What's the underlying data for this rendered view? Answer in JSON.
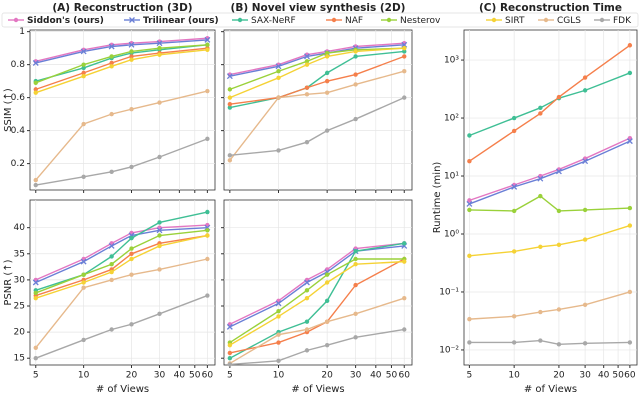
{
  "chart_data": [
    {
      "type": "line",
      "title": "(A) Reconstruction (3D)",
      "ylabel": "SSIM (↑)",
      "xscale": "log",
      "x": [
        5,
        10,
        15,
        20,
        30,
        60
      ],
      "xlim": [
        4.6,
        67
      ],
      "xticks": [
        5,
        10,
        20,
        30,
        40,
        50,
        60
      ],
      "ylim": [
        0.04,
        1.01
      ],
      "yticks": [
        0.2,
        0.4,
        0.6,
        0.8,
        1.0
      ],
      "grid": true,
      "series": [
        {
          "name": "Siddon's (ours)",
          "color": "#e377c2",
          "marker": "o",
          "values": [
            0.82,
            0.89,
            0.92,
            0.93,
            0.94,
            0.96
          ]
        },
        {
          "name": "Trilinear (ours)",
          "color": "#6a7fd6",
          "marker": "x",
          "values": [
            0.81,
            0.88,
            0.91,
            0.92,
            0.93,
            0.95
          ]
        },
        {
          "name": "SAX-NeRF",
          "color": "#3fbf95",
          "marker": "o",
          "values": [
            0.7,
            0.78,
            0.84,
            0.87,
            0.89,
            0.92
          ]
        },
        {
          "name": "NAF",
          "color": "#f57f4b",
          "marker": "o",
          "values": [
            0.65,
            0.75,
            0.81,
            0.85,
            0.87,
            0.9
          ]
        },
        {
          "name": "Nesterov",
          "color": "#9ad13a",
          "marker": "o",
          "values": [
            0.69,
            0.8,
            0.85,
            0.88,
            0.9,
            0.92
          ]
        },
        {
          "name": "SIRT",
          "color": "#f5d235",
          "marker": "o",
          "values": [
            0.63,
            0.73,
            0.79,
            0.83,
            0.86,
            0.89
          ]
        },
        {
          "name": "CGLS",
          "color": "#e6b98c",
          "marker": "o",
          "values": [
            0.1,
            0.44,
            0.5,
            0.53,
            0.57,
            0.64
          ]
        },
        {
          "name": "FDK",
          "color": "#a8a8a8",
          "marker": "o",
          "values": [
            0.07,
            0.12,
            0.15,
            0.18,
            0.24,
            0.35
          ]
        }
      ]
    },
    {
      "type": "line",
      "ylabel": "PSNR (↑)",
      "xlabel": "# of Views",
      "xscale": "log",
      "x": [
        5,
        10,
        15,
        20,
        30,
        60
      ],
      "xlim": [
        4.6,
        67
      ],
      "xticks": [
        5,
        10,
        20,
        30,
        40,
        50,
        60
      ],
      "ylim": [
        13.7,
        45.3
      ],
      "yticks": [
        15,
        20,
        25,
        30,
        35,
        40
      ],
      "grid": true,
      "series": [
        {
          "name": "Siddon's (ours)",
          "color": "#e377c2",
          "marker": "o",
          "values": [
            30,
            34,
            37,
            39,
            40,
            40.5
          ]
        },
        {
          "name": "Trilinear (ours)",
          "color": "#6a7fd6",
          "marker": "x",
          "values": [
            29.5,
            33.5,
            36.5,
            38.5,
            39.5,
            40
          ]
        },
        {
          "name": "SAX-NeRF",
          "color": "#3fbf95",
          "marker": "o",
          "values": [
            28,
            31,
            34.5,
            38,
            41,
            43
          ]
        },
        {
          "name": "NAF",
          "color": "#f57f4b",
          "marker": "o",
          "values": [
            27,
            30,
            32,
            35,
            37,
            38.5
          ]
        },
        {
          "name": "Nesterov",
          "color": "#9ad13a",
          "marker": "o",
          "values": [
            27.5,
            31,
            33,
            36,
            38.5,
            39.5
          ]
        },
        {
          "name": "SIRT",
          "color": "#f5d235",
          "marker": "o",
          "values": [
            26.5,
            29.5,
            31.5,
            34,
            36.5,
            38.5
          ]
        },
        {
          "name": "CGLS",
          "color": "#e6b98c",
          "marker": "o",
          "values": [
            17,
            28.5,
            30,
            31,
            32,
            34
          ]
        },
        {
          "name": "FDK",
          "color": "#a8a8a8",
          "marker": "o",
          "values": [
            15,
            18.5,
            20.5,
            21.5,
            23.5,
            27
          ]
        }
      ]
    },
    {
      "type": "line",
      "title": "(B) Novel view synthesis (2D)",
      "xscale": "log",
      "x": [
        5,
        10,
        15,
        20,
        30,
        60
      ],
      "xlim": [
        4.6,
        67
      ],
      "xticks": [
        5,
        10,
        20,
        30,
        40,
        50,
        60
      ],
      "ylim": [
        0.04,
        1.01
      ],
      "yticks": [
        0.2,
        0.4,
        0.6,
        0.8,
        1.0
      ],
      "grid": true,
      "series": [
        {
          "name": "Siddon's (ours)",
          "color": "#e377c2",
          "marker": "o",
          "values": [
            0.74,
            0.8,
            0.86,
            0.88,
            0.91,
            0.93
          ]
        },
        {
          "name": "Trilinear (ours)",
          "color": "#6a7fd6",
          "marker": "x",
          "values": [
            0.73,
            0.79,
            0.85,
            0.87,
            0.9,
            0.92
          ]
        },
        {
          "name": "SAX-NeRF",
          "color": "#3fbf95",
          "marker": "o",
          "values": [
            0.54,
            0.6,
            0.66,
            0.75,
            0.85,
            0.88
          ]
        },
        {
          "name": "NAF",
          "color": "#f57f4b",
          "marker": "o",
          "values": [
            0.56,
            0.6,
            0.66,
            0.7,
            0.74,
            0.85
          ]
        },
        {
          "name": "Nesterov",
          "color": "#9ad13a",
          "marker": "o",
          "values": [
            0.65,
            0.76,
            0.82,
            0.87,
            0.89,
            0.9
          ]
        },
        {
          "name": "SIRT",
          "color": "#f5d235",
          "marker": "o",
          "values": [
            0.6,
            0.72,
            0.8,
            0.85,
            0.88,
            0.9
          ]
        },
        {
          "name": "CGLS",
          "color": "#e6b98c",
          "marker": "o",
          "values": [
            0.22,
            0.6,
            0.62,
            0.63,
            0.68,
            0.76
          ]
        },
        {
          "name": "FDK",
          "color": "#a8a8a8",
          "marker": "o",
          "values": [
            0.25,
            0.28,
            0.33,
            0.4,
            0.47,
            0.6
          ]
        }
      ]
    },
    {
      "type": "line",
      "xlabel": "# of Views",
      "xscale": "log",
      "x": [
        5,
        10,
        15,
        20,
        30,
        60
      ],
      "xlim": [
        4.6,
        67
      ],
      "xticks": [
        5,
        10,
        20,
        30,
        40,
        50,
        60
      ],
      "ylim": [
        13.7,
        45.3
      ],
      "yticks": [
        15,
        20,
        25,
        30,
        35,
        40
      ],
      "grid": true,
      "series": [
        {
          "name": "Siddon's (ours)",
          "color": "#e377c2",
          "marker": "o",
          "values": [
            21.5,
            26,
            30,
            32,
            36,
            37
          ]
        },
        {
          "name": "Trilinear (ours)",
          "color": "#6a7fd6",
          "marker": "x",
          "values": [
            21,
            25.5,
            29.5,
            31.5,
            35.5,
            36.5
          ]
        },
        {
          "name": "SAX-NeRF",
          "color": "#3fbf95",
          "marker": "o",
          "values": [
            15,
            20,
            22,
            26,
            35.5,
            37
          ]
        },
        {
          "name": "NAF",
          "color": "#f57f4b",
          "marker": "o",
          "values": [
            16,
            18,
            20,
            22,
            29,
            34
          ]
        },
        {
          "name": "Nesterov",
          "color": "#9ad13a",
          "marker": "o",
          "values": [
            18,
            24,
            28,
            31,
            34,
            34
          ]
        },
        {
          "name": "SIRT",
          "color": "#f5d235",
          "marker": "o",
          "values": [
            17.5,
            23,
            26.5,
            29.5,
            33,
            33.5
          ]
        },
        {
          "name": "CGLS",
          "color": "#e6b98c",
          "marker": "o",
          "values": [
            14,
            19.5,
            20.5,
            22,
            23.5,
            26.5
          ]
        },
        {
          "name": "FDK",
          "color": "#a8a8a8",
          "marker": "o",
          "values": [
            13.8,
            14.5,
            16.5,
            17.5,
            19,
            20.5
          ]
        }
      ]
    },
    {
      "type": "line",
      "title": "(C) Reconstruction Time",
      "ylabel": "Runtime (min)",
      "xlabel": "# of Views",
      "xscale": "log",
      "yscale": "log",
      "x": [
        5,
        10,
        15,
        20,
        30,
        60
      ],
      "xlim": [
        4.6,
        67
      ],
      "xticks": [
        5,
        10,
        20,
        30,
        40,
        50,
        60
      ],
      "ylim": [
        0.0055,
        3300
      ],
      "yticks": [
        {
          "value": 0.01,
          "label": "10⁻²"
        },
        {
          "value": 0.1,
          "label": "10⁻¹"
        },
        {
          "value": 1,
          "label": "10⁰"
        },
        {
          "value": 10,
          "label": "10¹"
        },
        {
          "value": 100,
          "label": "10²"
        },
        {
          "value": 1000,
          "label": "10³"
        }
      ],
      "grid": true,
      "series": [
        {
          "name": "Siddon's (ours)",
          "color": "#e377c2",
          "marker": "o",
          "values": [
            3.8,
            7,
            10,
            13,
            20,
            45
          ]
        },
        {
          "name": "Trilinear (ours)",
          "color": "#6a7fd6",
          "marker": "x",
          "values": [
            3.3,
            6.5,
            9,
            12,
            18,
            40
          ]
        },
        {
          "name": "SAX-NeRF",
          "color": "#3fbf95",
          "marker": "o",
          "values": [
            50,
            100,
            150,
            220,
            300,
            600
          ]
        },
        {
          "name": "NAF",
          "color": "#f57f4b",
          "marker": "o",
          "values": [
            18,
            60,
            120,
            230,
            500,
            1800
          ]
        },
        {
          "name": "Nesterov",
          "color": "#9ad13a",
          "marker": "o",
          "values": [
            2.6,
            2.5,
            4.5,
            2.5,
            2.6,
            2.8
          ]
        },
        {
          "name": "SIRT",
          "color": "#f5d235",
          "marker": "o",
          "values": [
            0.42,
            0.5,
            0.6,
            0.65,
            0.8,
            1.4
          ]
        },
        {
          "name": "CGLS",
          "color": "#e6b98c",
          "marker": "o",
          "values": [
            0.034,
            0.038,
            0.045,
            0.05,
            0.06,
            0.1
          ]
        },
        {
          "name": "FDK",
          "color": "#a8a8a8",
          "marker": "o",
          "values": [
            0.0135,
            0.0135,
            0.0145,
            0.0125,
            0.013,
            0.0135
          ]
        }
      ]
    }
  ]
}
